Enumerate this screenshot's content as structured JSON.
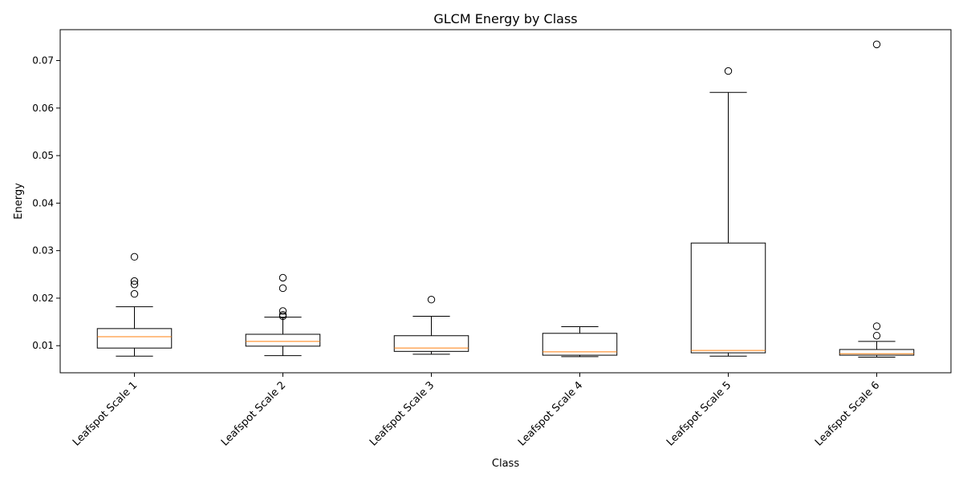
{
  "chart_data": {
    "type": "box",
    "title": "GLCM Energy by Class",
    "xlabel": "Class",
    "ylabel": "Energy",
    "ylim": [
      0.0043,
      0.0765
    ],
    "yticks": [
      0.01,
      0.02,
      0.03,
      0.04,
      0.05,
      0.06,
      0.07
    ],
    "ytick_labels": [
      "0.01",
      "0.02",
      "0.03",
      "0.04",
      "0.05",
      "0.06",
      "0.07"
    ],
    "grid": false,
    "colors": {
      "box_edge": "#000000",
      "median": "#ff7f0e",
      "background": "#ffffff"
    },
    "categories": [
      "Leafspot Scale 1",
      "Leafspot Scale 2",
      "Leafspot Scale 3",
      "Leafspot Scale 4",
      "Leafspot Scale 5",
      "Leafspot Scale 6"
    ],
    "boxes": [
      {
        "whisker_low": 0.0078,
        "q1": 0.0095,
        "median": 0.0119,
        "q3": 0.0136,
        "whisker_high": 0.0182,
        "outliers": [
          0.0209,
          0.0229,
          0.0236,
          0.0287
        ]
      },
      {
        "whisker_low": 0.0079,
        "q1": 0.0099,
        "median": 0.0109,
        "q3": 0.0124,
        "whisker_high": 0.016,
        "outliers": [
          0.0162,
          0.0165,
          0.0173,
          0.0221,
          0.0243
        ]
      },
      {
        "whisker_low": 0.0082,
        "q1": 0.0088,
        "median": 0.0095,
        "q3": 0.0121,
        "whisker_high": 0.0162,
        "outliers": [
          0.0197
        ]
      },
      {
        "whisker_low": 0.0077,
        "q1": 0.008,
        "median": 0.0087,
        "q3": 0.0126,
        "whisker_high": 0.014,
        "outliers": []
      },
      {
        "whisker_low": 0.0078,
        "q1": 0.0085,
        "median": 0.009,
        "q3": 0.0316,
        "whisker_high": 0.0633,
        "outliers": [
          0.0678
        ]
      },
      {
        "whisker_low": 0.0076,
        "q1": 0.008,
        "median": 0.0083,
        "q3": 0.0092,
        "whisker_high": 0.0109,
        "outliers": [
          0.0121,
          0.0141,
          0.0734
        ]
      }
    ]
  }
}
